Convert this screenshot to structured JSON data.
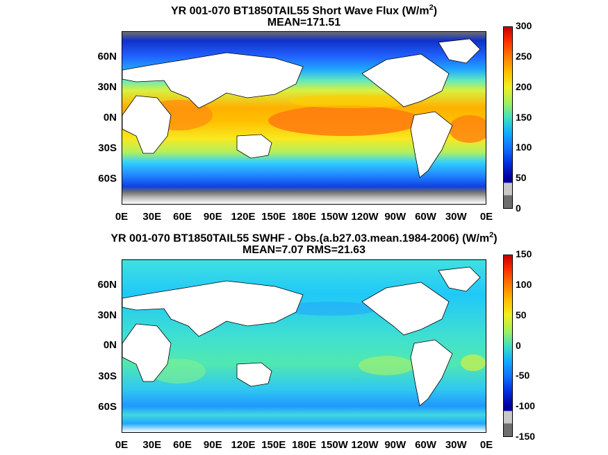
{
  "chart_data": [
    {
      "type": "heatmap",
      "title_line1": "YR 001-070 BT1850TAIL55  Short Wave Flux (W/m",
      "title_sup": "2",
      "title_close": ")",
      "title_line2": "MEAN=171.51",
      "xticks": [
        "0E",
        "30E",
        "60E",
        "90E",
        "120E",
        "150E",
        "180E",
        "150W",
        "120W",
        "90W",
        "60W",
        "30W",
        "0E"
      ],
      "yticks": [
        "60N",
        "30N",
        "0N",
        "30S",
        "60S"
      ],
      "colorbar": {
        "min": 0,
        "max": 300,
        "ticks": [
          "300",
          "250",
          "200",
          "150",
          "100",
          "50",
          "0"
        ]
      },
      "mean": 171.51
    },
    {
      "type": "heatmap",
      "title_line1": "YR 001-070 BT1850TAIL55 SWHF - Obs.(a.b27.03.mean.1984-2006) (W/m",
      "title_sup": "2",
      "title_close": ")",
      "title_line2": "MEAN=7.07 RMS=21.63",
      "xticks": [
        "0E",
        "30E",
        "60E",
        "90E",
        "120E",
        "150E",
        "180E",
        "150W",
        "120W",
        "90W",
        "60W",
        "30W",
        "0E"
      ],
      "yticks": [
        "60N",
        "30N",
        "0N",
        "30S",
        "60S"
      ],
      "colorbar": {
        "min": -150,
        "max": 150,
        "ticks": [
          "150",
          "100",
          "50",
          "0",
          "-50",
          "-100",
          "-150"
        ]
      },
      "mean": 7.07,
      "rms": 21.63
    }
  ]
}
